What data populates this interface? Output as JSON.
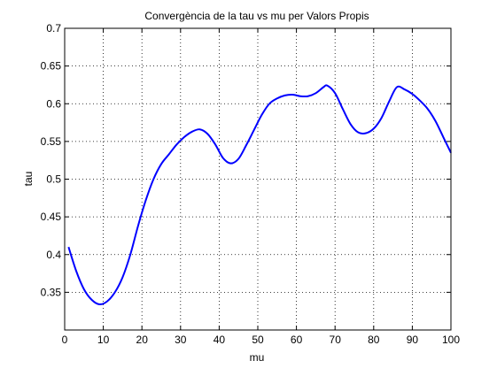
{
  "chart_data": {
    "type": "line",
    "title": "Convergència de la tau vs mu per Valors Propis",
    "xlabel": "mu",
    "ylabel": "tau",
    "xlim": [
      0,
      100
    ],
    "ylim": [
      0.3,
      0.7
    ],
    "grid": true,
    "xticks": [
      0,
      10,
      20,
      30,
      40,
      50,
      60,
      70,
      80,
      90,
      100
    ],
    "yticks": [
      0.35,
      0.4,
      0.45,
      0.5,
      0.55,
      0.6,
      0.65,
      0.7
    ],
    "xtick_labels": [
      "0",
      "10",
      "20",
      "30",
      "40",
      "50",
      "60",
      "70",
      "80",
      "90",
      "100"
    ],
    "ytick_labels": [
      "0.35",
      "0.4",
      "0.45",
      "0.5",
      "0.55",
      "0.6",
      "0.65",
      "0.7"
    ],
    "series": [
      {
        "color": "#0000ff",
        "x": [
          1,
          3,
          5,
          7,
          9,
          11,
          13,
          15,
          17,
          19,
          21,
          23,
          25,
          27,
          29,
          31,
          33,
          35,
          37,
          39,
          41,
          43,
          45,
          47,
          49,
          51,
          53,
          55,
          57,
          59,
          61,
          63,
          65,
          67,
          68,
          70,
          72,
          74,
          76,
          78,
          80,
          82,
          84,
          86,
          88,
          90,
          92,
          94,
          96,
          98,
          100
        ],
        "y": [
          0.41,
          0.378,
          0.354,
          0.34,
          0.334,
          0.338,
          0.35,
          0.37,
          0.4,
          0.438,
          0.472,
          0.5,
          0.52,
          0.533,
          0.546,
          0.556,
          0.563,
          0.566,
          0.56,
          0.546,
          0.528,
          0.521,
          0.527,
          0.545,
          0.565,
          0.585,
          0.6,
          0.607,
          0.611,
          0.612,
          0.61,
          0.61,
          0.614,
          0.622,
          0.624,
          0.614,
          0.593,
          0.573,
          0.562,
          0.561,
          0.567,
          0.581,
          0.603,
          0.622,
          0.619,
          0.613,
          0.604,
          0.593,
          0.577,
          0.556,
          0.535
        ]
      }
    ]
  }
}
